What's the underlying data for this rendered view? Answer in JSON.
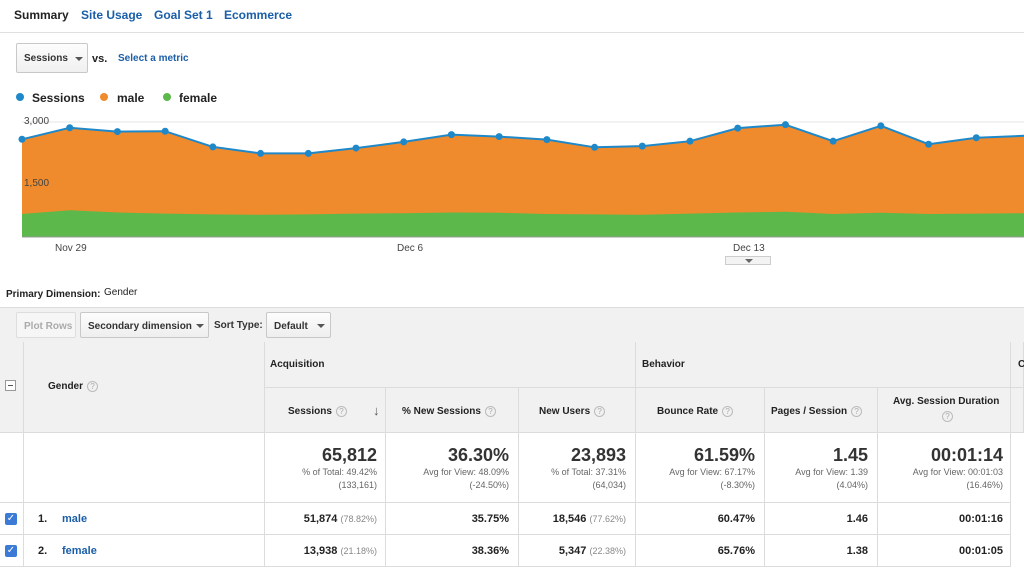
{
  "tabs": [
    "Summary",
    "Site Usage",
    "Goal Set 1",
    "Ecommerce"
  ],
  "metric_selector": {
    "value": "Sessions",
    "vs_label": "vs.",
    "select_metric": "Select a metric"
  },
  "legend": [
    {
      "name": "Sessions",
      "color": "#1e88c9"
    },
    {
      "name": "male",
      "color": "#ef8b2c"
    },
    {
      "name": "female",
      "color": "#5cb84a"
    }
  ],
  "chart_data": {
    "type": "area",
    "y_ticks": [
      "3,000",
      "1,500"
    ],
    "x_ticks": [
      "Nov 29",
      "Dec 6",
      "Dec 13"
    ],
    "series": [
      {
        "name": "Sessions",
        "values": [
          2550,
          2850,
          2750,
          2760,
          2350,
          2180,
          2180,
          2320,
          2480,
          2670,
          2620,
          2540,
          2340,
          2370,
          2500,
          2840,
          2930,
          2500,
          2900,
          2420,
          2590,
          2640
        ]
      },
      {
        "name": "female",
        "values": [
          600,
          700,
          640,
          610,
          590,
          580,
          590,
          610,
          620,
          640,
          630,
          600,
          590,
          580,
          610,
          640,
          660,
          600,
          630,
          600,
          610,
          620
        ]
      }
    ]
  },
  "primary_dimension": {
    "label": "Primary Dimension:",
    "value": "Gender"
  },
  "toolbar": {
    "plot_rows": "Plot Rows",
    "secondary_dimension": "Secondary dimension",
    "sort_type_label": "Sort Type:",
    "sort_type_value": "Default"
  },
  "table": {
    "dimension_header": "Gender",
    "group_acquisition": "Acquisition",
    "group_behavior": "Behavior",
    "columns": [
      "Sessions",
      "% New Sessions",
      "New Users",
      "Bounce Rate",
      "Pages / Session",
      "Avg. Session Duration"
    ],
    "totals": [
      {
        "value": "65,812",
        "line1": "% of Total: 49.42%",
        "line2": "(133,161)"
      },
      {
        "value": "36.30%",
        "line1": "Avg for View: 48.09%",
        "line2": "(-24.50%)"
      },
      {
        "value": "23,893",
        "line1": "% of Total: 37.31%",
        "line2": "(64,034)"
      },
      {
        "value": "61.59%",
        "line1": "Avg for View: 67.17%",
        "line2": "(-8.30%)"
      },
      {
        "value": "1.45",
        "line1": "Avg for View: 1.39",
        "line2": "(4.04%)"
      },
      {
        "value": "00:01:14",
        "line1": "Avg for View: 00:01:03",
        "line2": "(16.46%)"
      }
    ],
    "rows": [
      {
        "num": "1.",
        "name": "male",
        "sessions": "51,874",
        "sessions_pct": "(78.82%)",
        "new_sessions": "35.75%",
        "new_users": "18,546",
        "new_users_pct": "(77.62%)",
        "bounce": "60.47%",
        "pages": "1.46",
        "duration": "00:01:16"
      },
      {
        "num": "2.",
        "name": "female",
        "sessions": "13,938",
        "sessions_pct": "(21.18%)",
        "new_sessions": "38.36%",
        "new_users": "5,347",
        "new_users_pct": "(22.38%)",
        "bounce": "65.76%",
        "pages": "1.38",
        "duration": "00:01:05"
      }
    ]
  }
}
